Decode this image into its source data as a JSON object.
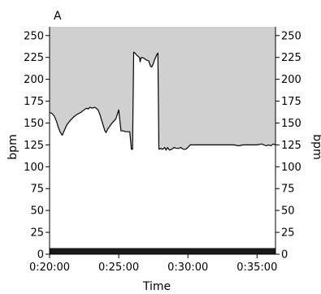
{
  "chart_data": {
    "type": "area",
    "panel_label": "A",
    "xlabel": "Time",
    "ylabel_left": "bpm",
    "ylabel_right": "bpm",
    "xlim": [
      1200,
      2180
    ],
    "ylim": [
      0,
      260
    ],
    "x_ticks": [
      {
        "value": 1200,
        "label": "0:20:00"
      },
      {
        "value": 1500,
        "label": "0:25:00"
      },
      {
        "value": 1800,
        "label": "0:30:00"
      },
      {
        "value": 2100,
        "label": "0:35:00"
      }
    ],
    "y_ticks": [
      0,
      25,
      50,
      75,
      100,
      125,
      150,
      175,
      200,
      225,
      250
    ],
    "colors": {
      "fill_above": "#d0d0d0",
      "line": "#000000",
      "bottom_bar": "#1a1a1a",
      "axis": "#000000"
    },
    "bottom_bar": {
      "y_from": 0,
      "y_to": 7
    },
    "series": [
      {
        "x": [
          1200,
          1210,
          1220,
          1230,
          1238,
          1245,
          1255,
          1265,
          1275,
          1290,
          1305,
          1320,
          1335,
          1350,
          1360,
          1368,
          1375,
          1385,
          1395,
          1402,
          1410,
          1418,
          1425,
          1433,
          1440,
          1445,
          1452,
          1460,
          1468,
          1478,
          1488,
          1494,
          1500,
          1510,
          1520,
          1530,
          1540,
          1548,
          1555,
          1560,
          1565,
          1570,
          1580,
          1590,
          1593,
          1596,
          1600,
          1610,
          1620,
          1630,
          1638,
          1643,
          1650,
          1655,
          1660,
          1665,
          1670,
          1674,
          1682,
          1690,
          1700,
          1705,
          1712,
          1720,
          1730,
          1740,
          1750,
          1760,
          1770,
          1780,
          1790,
          1800,
          1810,
          1820,
          1830,
          1840,
          1850,
          1860,
          1870,
          1880,
          1890,
          1900,
          1920,
          1940,
          1960,
          1980,
          2000,
          2020,
          2040,
          2060,
          2080,
          2100,
          2120,
          2140,
          2150,
          2160,
          2170,
          2180
        ],
        "values": [
          162,
          161,
          158,
          152,
          145,
          140,
          136,
          142,
          148,
          153,
          157,
          160,
          162,
          165,
          167,
          166,
          168,
          167,
          168,
          167,
          165,
          160,
          154,
          147,
          141,
          139,
          143,
          146,
          149,
          152,
          155,
          160,
          165,
          141,
          141,
          140,
          140,
          140,
          120,
          120,
          231,
          230,
          227,
          225,
          220,
          224,
          225,
          224,
          222,
          221,
          215,
          214,
          218,
          222,
          225,
          228,
          230,
          120,
          121,
          120,
          122,
          119,
          122,
          119,
          120,
          122,
          121,
          121,
          122,
          120,
          120,
          122,
          125,
          125,
          125,
          125,
          125,
          125,
          125,
          125,
          125,
          125,
          125,
          125,
          125,
          125,
          125,
          124,
          125,
          125,
          125,
          125,
          126,
          124,
          125,
          124,
          126,
          125
        ]
      }
    ]
  }
}
